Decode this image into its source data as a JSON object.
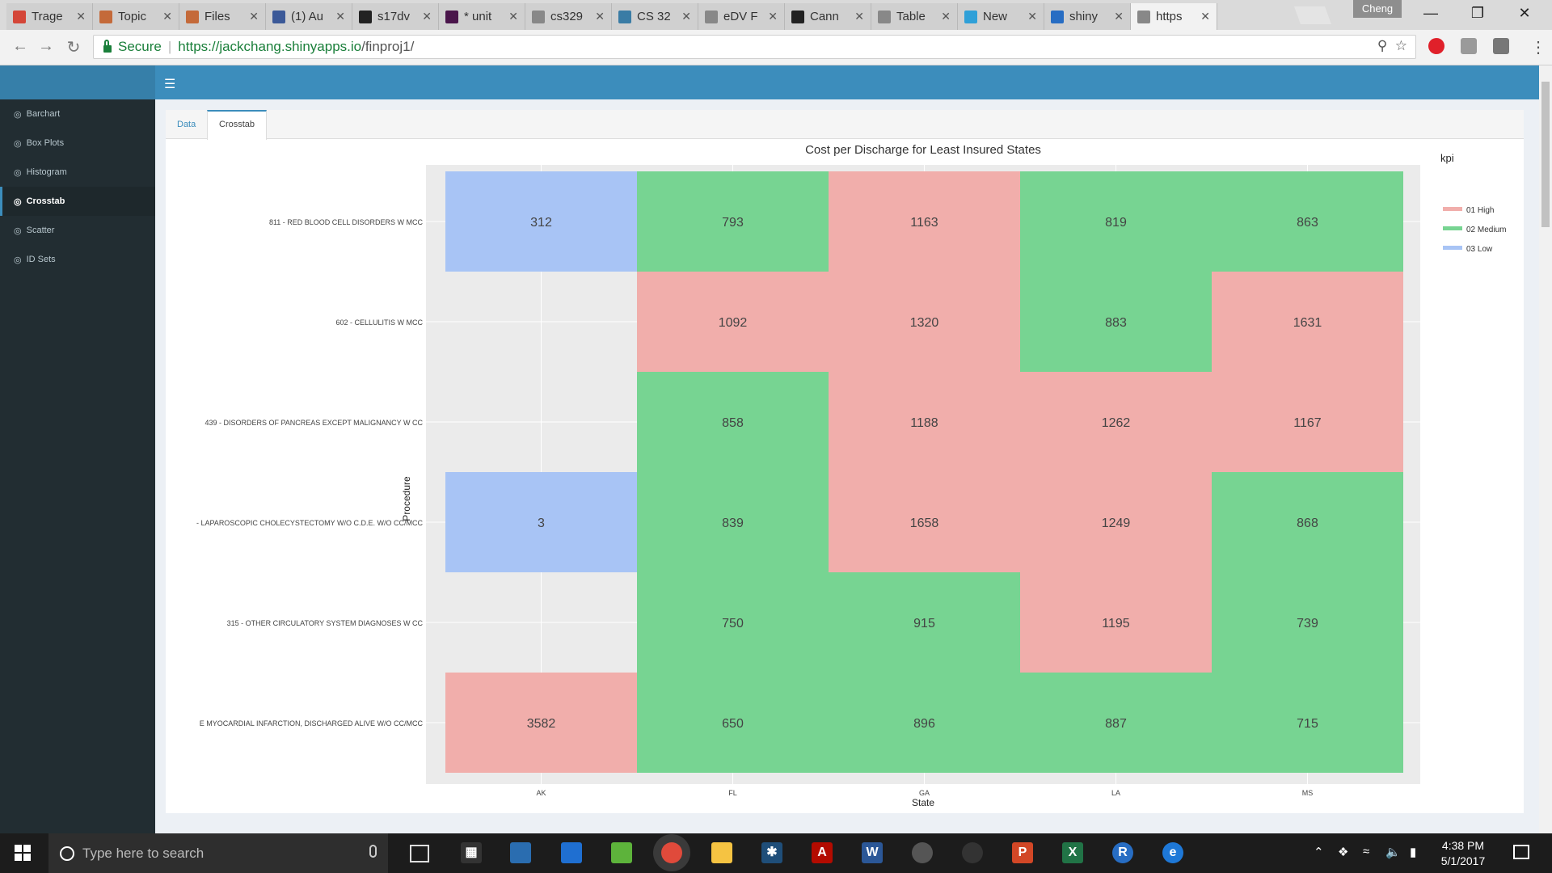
{
  "browser": {
    "tabs": [
      {
        "label": "Trage",
        "icon": "gmail-icon",
        "color": "#d44638"
      },
      {
        "label": "Topic",
        "icon": "piazza-icon",
        "color": "#c46a3a"
      },
      {
        "label": "Files",
        "icon": "piazza-icon",
        "color": "#c46a3a"
      },
      {
        "label": "(1) Au",
        "icon": "facebook-icon",
        "color": "#3b5998"
      },
      {
        "label": "s17dv",
        "icon": "github-icon",
        "color": "#222222"
      },
      {
        "label": "* unit",
        "icon": "slack-icon",
        "color": "#4a154b"
      },
      {
        "label": "cs329",
        "icon": "page-icon",
        "color": "#888888"
      },
      {
        "label": "CS 32",
        "icon": "piazza-icon",
        "color": "#3a7ca5"
      },
      {
        "label": "eDV F",
        "icon": "page-icon",
        "color": "#888888"
      },
      {
        "label": "Cann",
        "icon": "github-icon",
        "color": "#222222"
      },
      {
        "label": "Table",
        "icon": "page-icon",
        "color": "#888888"
      },
      {
        "label": "New",
        "icon": "app-icon",
        "color": "#2fa0d8"
      },
      {
        "label": "shiny",
        "icon": "r-icon",
        "color": "#276dc3"
      },
      {
        "label": "https",
        "icon": "page-icon",
        "color": "#888888"
      }
    ],
    "profile": "Cheng",
    "secure_label": "Secure",
    "url_host": "https://jackchang.shinyapps.io",
    "url_path": "/finproj1/"
  },
  "sidebar": {
    "items": [
      {
        "label": "Barchart",
        "active": false
      },
      {
        "label": "Box Plots",
        "active": false
      },
      {
        "label": "Histogram",
        "active": false
      },
      {
        "label": "Crosstab",
        "active": true
      },
      {
        "label": "Scatter",
        "active": false
      },
      {
        "label": "ID Sets",
        "active": false
      }
    ]
  },
  "panel_tabs": {
    "data": "Data",
    "crosstab": "Crosstab"
  },
  "chart_data": {
    "type": "heatmap",
    "title": "Cost per Discharge for Least Insured States",
    "xlabel": "State",
    "ylabel": "Procedure",
    "x": [
      "AK",
      "FL",
      "GA",
      "LA",
      "MS"
    ],
    "y": [
      "811 - RED BLOOD CELL DISORDERS W MCC",
      "602 - CELLULITIS W MCC",
      "439 - DISORDERS OF PANCREAS EXCEPT MALIGNANCY W CC",
      "- LAPAROSCOPIC CHOLECYSTECTOMY W/O C.D.E. W/O CC/MCC",
      "315 - OTHER CIRCULATORY SYSTEM DIAGNOSES W CC",
      "E MYOCARDIAL INFARCTION, DISCHARGED ALIVE W/O CC/MCC"
    ],
    "values": [
      [
        312,
        793,
        1163,
        819,
        863
      ],
      [
        null,
        1092,
        1320,
        883,
        1631
      ],
      [
        null,
        858,
        1188,
        1262,
        1167
      ],
      [
        3,
        839,
        1658,
        1249,
        868
      ],
      [
        null,
        750,
        915,
        1195,
        739
      ],
      [
        3582,
        650,
        896,
        887,
        715
      ]
    ],
    "kpi": [
      [
        "03 Low",
        "02 Medium",
        "01 High",
        "02 Medium",
        "02 Medium"
      ],
      [
        null,
        "01 High",
        "01 High",
        "02 Medium",
        "01 High"
      ],
      [
        null,
        "02 Medium",
        "01 High",
        "01 High",
        "01 High"
      ],
      [
        "03 Low",
        "02 Medium",
        "01 High",
        "01 High",
        "02 Medium"
      ],
      [
        null,
        "02 Medium",
        "02 Medium",
        "01 High",
        "02 Medium"
      ],
      [
        "01 High",
        "02 Medium",
        "02 Medium",
        "02 Medium",
        "02 Medium"
      ]
    ],
    "legend_title": "kpi",
    "legend": [
      {
        "name": "01 High",
        "color": "#f1aeab"
      },
      {
        "name": "02 Medium",
        "color": "#77d492"
      },
      {
        "name": "03 Low",
        "color": "#a8c4f5"
      }
    ],
    "background_color": "#ebebeb",
    "legend_placement": "right",
    "grid": true
  },
  "taskbar": {
    "search_placeholder": "Type here to search",
    "time": "4:38 PM",
    "date": "5/1/2017"
  }
}
